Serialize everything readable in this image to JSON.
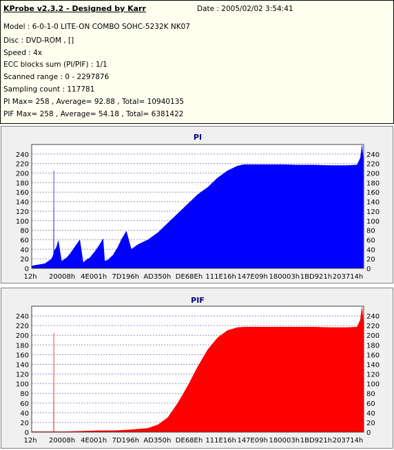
{
  "info": {
    "title": "KProbe v2.3.2 - Designed by Karr",
    "date": "Date : 2005/02/02 3:54:41",
    "lines": [
      "Model : 6-0-1-0 LITE-ON COMBO SOHC-5232K NK07",
      "Disc : DVD-ROM ,  []",
      "Speed : 4x",
      "ECC blocks sum (PI/PIF) : 1/1",
      "Scanned range : 0 - 2297876",
      "Sampling count : 117781",
      "PI Max= 258 , Average= 92.88 , Total= 10940135",
      "PIF Max= 258 , Average= 54.18 , Total= 6381422"
    ]
  },
  "colors": {
    "pi": "#0000ff",
    "pif": "#ff0000",
    "grid": "#9090c0",
    "background": "#f0f0f0"
  },
  "chart_data": [
    {
      "type": "area",
      "title": "PI",
      "ylim": [
        0,
        260
      ],
      "yticks": [
        0,
        20,
        40,
        60,
        80,
        100,
        120,
        140,
        160,
        180,
        200,
        220,
        240
      ],
      "xticks": [
        "12h",
        "20008h",
        "4E001h",
        "7D196h",
        "AD350h",
        "DE68Eh",
        "111E16h",
        "147E09h",
        "180003h",
        "1BD921h",
        "203714h"
      ],
      "grid": true,
      "series": [
        {
          "x": [
            0,
            0.04,
            0.06,
            0.066,
            0.0665,
            0.067,
            0.075,
            0.08,
            0.09,
            0.1,
            0.105,
            0.115,
            0.13,
            0.145,
            0.155,
            0.165,
            0.175,
            0.19,
            0.205,
            0.215,
            0.22,
            0.23,
            0.245,
            0.26,
            0.27,
            0.285,
            0.3,
            0.32,
            0.35,
            0.38,
            0.41,
            0.44,
            0.47,
            0.5,
            0.53,
            0.56,
            0.59,
            0.62,
            0.64,
            0.66,
            0.7,
            0.75,
            0.8,
            0.85,
            0.9,
            0.95,
            0.98,
            0.99,
            0.995,
            1.0
          ],
          "values": [
            5,
            10,
            20,
            30,
            205,
            35,
            45,
            58,
            15,
            20,
            22,
            30,
            45,
            60,
            12,
            18,
            22,
            35,
            50,
            62,
            15,
            18,
            28,
            45,
            60,
            78,
            40,
            50,
            60,
            75,
            95,
            115,
            135,
            155,
            170,
            190,
            205,
            215,
            218,
            218,
            218,
            218,
            217,
            217,
            216,
            216,
            217,
            232,
            258,
            220
          ]
        }
      ]
    },
    {
      "type": "area",
      "title": "PIF",
      "ylim": [
        0,
        260
      ],
      "yticks": [
        0,
        20,
        40,
        60,
        80,
        100,
        120,
        140,
        160,
        180,
        200,
        220,
        240
      ],
      "xticks": [
        "12h",
        "20008h",
        "4E001h",
        "7D196h",
        "AD350h",
        "DE68Eh",
        "111E16h",
        "147E09h",
        "180003h",
        "1BD921h",
        "203714h"
      ],
      "grid": true,
      "series": [
        {
          "x": [
            0,
            0.06,
            0.066,
            0.0665,
            0.067,
            0.1,
            0.15,
            0.2,
            0.25,
            0.3,
            0.35,
            0.38,
            0.41,
            0.44,
            0.47,
            0.5,
            0.53,
            0.56,
            0.59,
            0.62,
            0.64,
            0.66,
            0.7,
            0.75,
            0.8,
            0.85,
            0.9,
            0.95,
            0.98,
            0.99,
            0.995,
            1.0
          ],
          "values": [
            1,
            1,
            1,
            205,
            1,
            1,
            2,
            3,
            3,
            5,
            8,
            15,
            30,
            60,
            95,
            135,
            170,
            195,
            210,
            216,
            217,
            217,
            217,
            217,
            217,
            217,
            216,
            216,
            217,
            232,
            258,
            220
          ]
        }
      ]
    }
  ]
}
